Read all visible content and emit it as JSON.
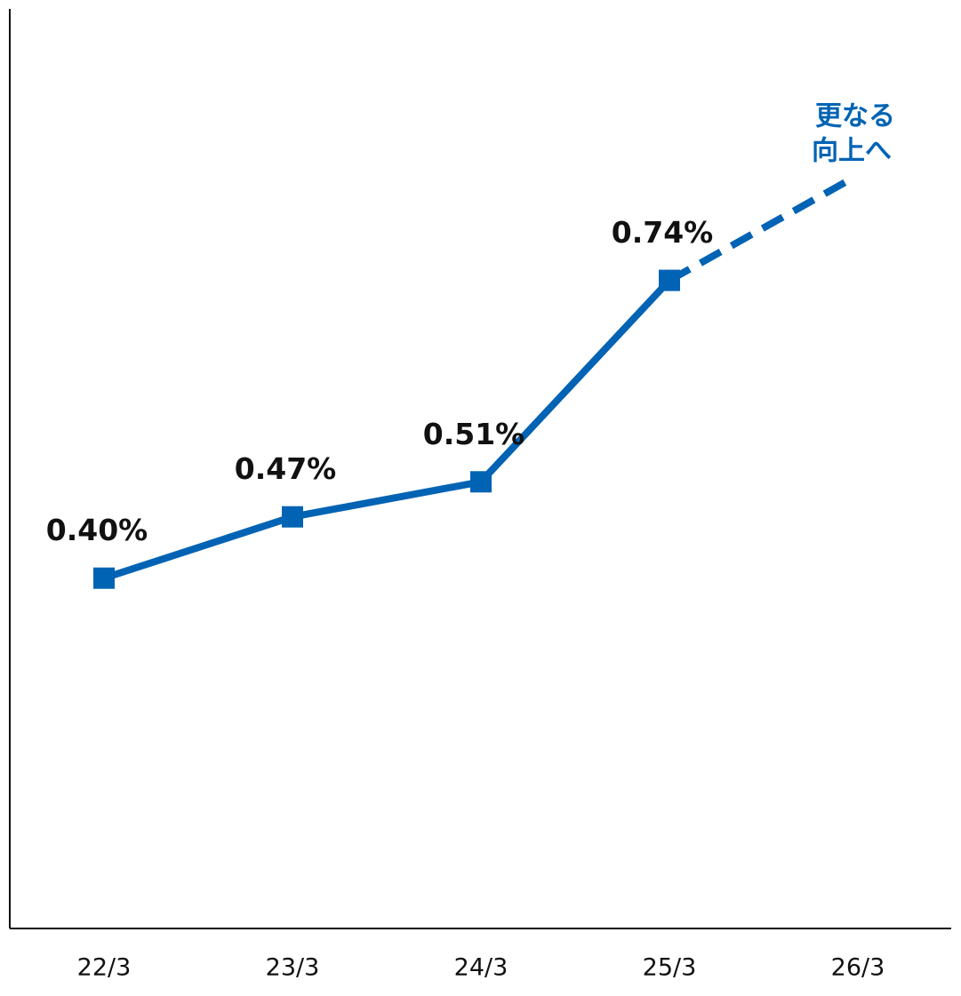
{
  "chart_data": {
    "type": "line",
    "categories": [
      "22/3",
      "23/3",
      "24/3",
      "25/3",
      "26/3"
    ],
    "series": [
      {
        "color": "#0063b4",
        "values": [
          0.4,
          0.47,
          0.51,
          0.74,
          null
        ],
        "value_labels": [
          "0.40%",
          "0.47%",
          "0.51%",
          "0.74%",
          null
        ]
      }
    ],
    "ylim": [
      0,
      1.05
    ],
    "annotation": [
      "更なる",
      "向上へ"
    ]
  }
}
